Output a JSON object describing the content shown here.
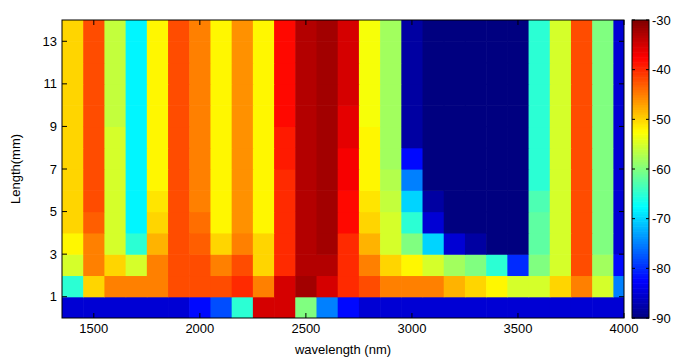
{
  "chart_data": {
    "type": "heatmap",
    "x_label": "wavelength (nm)",
    "y_label": "Length(mm)",
    "x": [
      1400,
      1500,
      1600,
      1700,
      1800,
      1900,
      2000,
      2100,
      2200,
      2300,
      2400,
      2500,
      2600,
      2700,
      2800,
      2900,
      3000,
      3100,
      3200,
      3300,
      3400,
      3500,
      3600,
      3700,
      3800,
      3900,
      4000
    ],
    "y": [
      0.5,
      1.5,
      2.5,
      3.5,
      4.5,
      5.5,
      6.5,
      7.5,
      8.5,
      9.5,
      10.5,
      11.5,
      12.5,
      13.5
    ],
    "cells": [
      [
        -85,
        -85,
        -85,
        -85,
        -85,
        -85,
        -82,
        -78,
        -65,
        -35,
        -35,
        -60,
        -75,
        -82,
        -85,
        -85,
        -85,
        -85,
        -85,
        -85,
        -85,
        -85,
        -85,
        -85,
        -85,
        -85,
        -85
      ],
      [
        -65,
        -50,
        -45,
        -45,
        -45,
        -42,
        -42,
        -42,
        -40,
        -45,
        -35,
        -32,
        -35,
        -40,
        -42,
        -45,
        -45,
        -45,
        -48,
        -50,
        -52,
        -55,
        -55,
        -50,
        -45,
        -55,
        -75
      ],
      [
        -55,
        -45,
        -50,
        -55,
        -45,
        -42,
        -42,
        -45,
        -42,
        -50,
        -40,
        -33,
        -33,
        -40,
        -45,
        -50,
        -52,
        -55,
        -58,
        -60,
        -65,
        -80,
        -60,
        -55,
        -42,
        -58,
        -82
      ],
      [
        -52,
        -45,
        -55,
        -65,
        -48,
        -42,
        -43,
        -50,
        -45,
        -50,
        -40,
        -33,
        -32,
        -40,
        -48,
        -55,
        -60,
        -70,
        -85,
        -88,
        -90,
        -90,
        -62,
        -55,
        -42,
        -60,
        -85
      ],
      [
        -50,
        -43,
        -55,
        -68,
        -50,
        -42,
        -44,
        -52,
        -46,
        -52,
        -40,
        -33,
        -32,
        -38,
        -50,
        -55,
        -65,
        -85,
        -90,
        -90,
        -90,
        -90,
        -62,
        -55,
        -42,
        -60,
        -85
      ],
      [
        -50,
        -42,
        -55,
        -68,
        -51,
        -42,
        -45,
        -52,
        -46,
        -52,
        -40,
        -33,
        -32,
        -38,
        -51,
        -56,
        -70,
        -88,
        -90,
        -90,
        -90,
        -90,
        -63,
        -55,
        -42,
        -60,
        -85
      ],
      [
        -50,
        -42,
        -55,
        -68,
        -52,
        -42,
        -45,
        -52,
        -46,
        -52,
        -40,
        -33,
        -32,
        -37,
        -52,
        -57,
        -75,
        -90,
        -90,
        -90,
        -90,
        -90,
        -65,
        -55,
        -42,
        -60,
        -85
      ],
      [
        -50,
        -42,
        -55,
        -68,
        -52,
        -42,
        -45,
        -52,
        -46,
        -52,
        -39,
        -33,
        -32,
        -37,
        -52,
        -58,
        -82,
        -90,
        -90,
        -90,
        -90,
        -90,
        -65,
        -55,
        -42,
        -60,
        -85
      ],
      [
        -50,
        -42,
        -55,
        -68,
        -52,
        -42,
        -45,
        -52,
        -46,
        -52,
        -39,
        -33,
        -32,
        -36,
        -52,
        -58,
        -88,
        -90,
        -90,
        -90,
        -90,
        -90,
        -65,
        -55,
        -42,
        -60,
        -85
      ],
      [
        -50,
        -42,
        -56,
        -68,
        -52,
        -42,
        -45,
        -52,
        -46,
        -52,
        -38,
        -33,
        -32,
        -36,
        -53,
        -58,
        -88,
        -90,
        -90,
        -90,
        -90,
        -90,
        -65,
        -55,
        -42,
        -60,
        -85
      ],
      [
        -50,
        -42,
        -56,
        -68,
        -52,
        -42,
        -45,
        -52,
        -46,
        -52,
        -38,
        -33,
        -32,
        -35,
        -53,
        -58,
        -88,
        -90,
        -90,
        -90,
        -90,
        -90,
        -65,
        -55,
        -42,
        -60,
        -85
      ],
      [
        -50,
        -42,
        -56,
        -68,
        -52,
        -42,
        -45,
        -52,
        -46,
        -52,
        -38,
        -33,
        -32,
        -35,
        -53,
        -58,
        -88,
        -90,
        -90,
        -90,
        -90,
        -90,
        -65,
        -55,
        -42,
        -60,
        -85
      ],
      [
        -50,
        -42,
        -56,
        -68,
        -52,
        -42,
        -45,
        -52,
        -46,
        -52,
        -38,
        -33,
        -32,
        -35,
        -53,
        -58,
        -88,
        -90,
        -90,
        -90,
        -90,
        -90,
        -65,
        -55,
        -42,
        -60,
        -85
      ],
      [
        -50,
        -42,
        -56,
        -68,
        -52,
        -42,
        -45,
        -52,
        -46,
        -52,
        -38,
        -33,
        -32,
        -35,
        -53,
        -58,
        -88,
        -90,
        -90,
        -90,
        -90,
        -90,
        -65,
        -55,
        -42,
        -60,
        -85
      ]
    ],
    "xlim": [
      1350,
      4000
    ],
    "ylim": [
      0,
      14
    ],
    "xticks": [
      1500,
      2000,
      2500,
      3000,
      3500,
      4000
    ],
    "yticks": [
      1,
      3,
      5,
      7,
      9,
      11,
      13
    ],
    "colorbar_range": [
      -90,
      -30
    ],
    "colorbar_ticks": [
      -30,
      -40,
      -50,
      -60,
      -70,
      -80,
      -90
    ]
  }
}
